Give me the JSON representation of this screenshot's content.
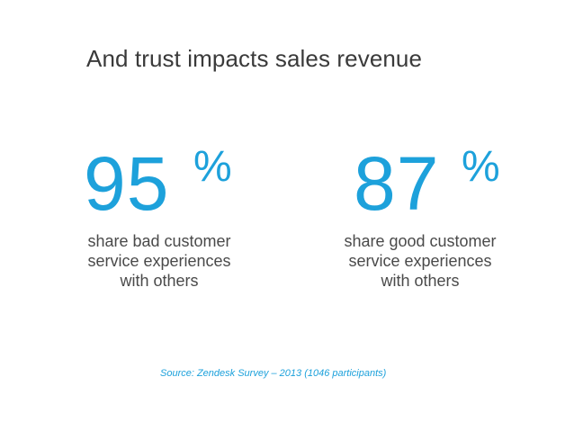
{
  "slide": {
    "title": "And trust impacts sales revenue",
    "stats": [
      {
        "value": "95",
        "unit": "%",
        "caption_lines": [
          "share bad customer",
          "service experiences",
          "with others"
        ]
      },
      {
        "value": "87",
        "unit": "%",
        "caption_lines": [
          "share good customer",
          "service experiences",
          "with others"
        ]
      }
    ],
    "source": "Source: Zendesk Survey – 2013 (1046 participants)"
  },
  "colors": {
    "accent": "#1da1db",
    "title_text": "#3a3a3a",
    "body_text": "#4a4a4a",
    "background": "#ffffff"
  }
}
